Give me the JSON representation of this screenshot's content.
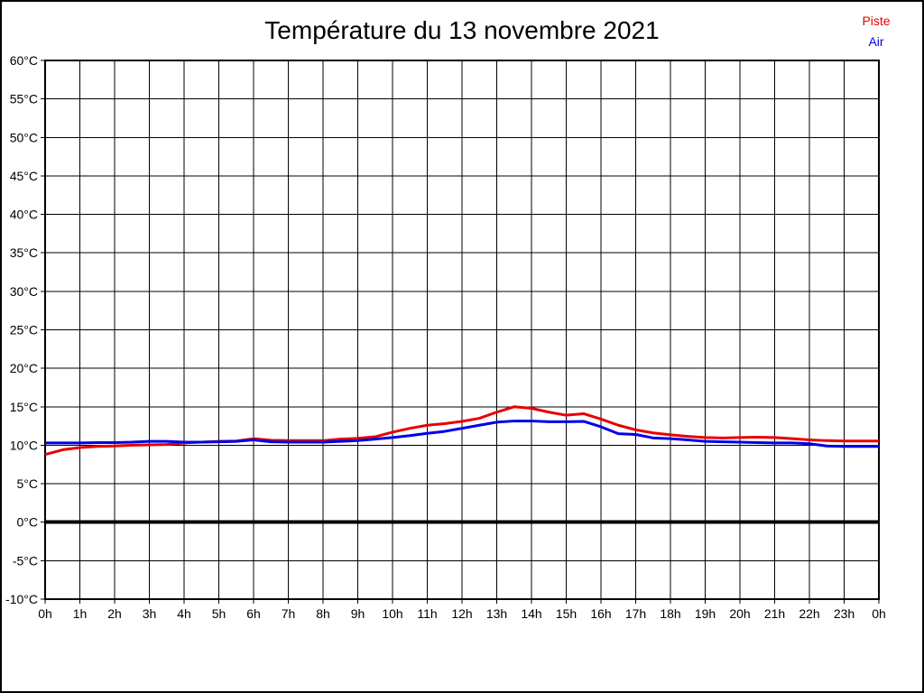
{
  "title": "Température du 13 novembre 2021",
  "legend": {
    "position": "top-right",
    "items": [
      {
        "label": "Piste",
        "color": "#e80000"
      },
      {
        "label": "Air",
        "color": "#0000e8"
      }
    ]
  },
  "axis_color": "#000000",
  "background_color": "#ffffff",
  "chart_data": {
    "type": "line",
    "title": "Température du 13 novembre 2021",
    "xlabel": "",
    "ylabel": "",
    "xlim": [
      0,
      24
    ],
    "ylim": [
      -10,
      60
    ],
    "y_tick_step": 5,
    "grid": true,
    "zero_line": true,
    "legend_position": "top-right",
    "x_tick_labels": [
      "0h",
      "1h",
      "2h",
      "3h",
      "4h",
      "5h",
      "6h",
      "7h",
      "8h",
      "9h",
      "10h",
      "11h",
      "12h",
      "13h",
      "14h",
      "15h",
      "16h",
      "17h",
      "18h",
      "19h",
      "20h",
      "21h",
      "22h",
      "23h",
      "0h"
    ],
    "y_tick_labels": [
      "60°C",
      "55°C",
      "50°C",
      "45°C",
      "40°C",
      "35°C",
      "30°C",
      "25°C",
      "20°C",
      "15°C",
      "10°C",
      "5°C",
      "0°C",
      "-5°C",
      "-10°C"
    ],
    "x": [
      0,
      0.5,
      1,
      1.5,
      2,
      2.5,
      3,
      3.5,
      4,
      4.5,
      5,
      5.5,
      6,
      6.5,
      7,
      7.5,
      8,
      8.5,
      9,
      9.5,
      10,
      10.5,
      11,
      11.5,
      12,
      12.5,
      13,
      13.5,
      14,
      14.5,
      15,
      15.5,
      16,
      16.5,
      17,
      17.5,
      18,
      18.5,
      19,
      19.5,
      20,
      20.5,
      21,
      21.5,
      22,
      22.5,
      23,
      23.5,
      24
    ],
    "series": [
      {
        "name": "Piste",
        "color": "#e80000",
        "values": [
          8.8,
          9.4,
          9.7,
          9.85,
          9.9,
          10.0,
          10.05,
          10.1,
          10.3,
          10.4,
          10.5,
          10.55,
          10.85,
          10.65,
          10.6,
          10.6,
          10.6,
          10.8,
          10.9,
          11.1,
          11.7,
          12.2,
          12.6,
          12.8,
          13.1,
          13.5,
          14.3,
          15.0,
          14.8,
          14.3,
          13.9,
          14.1,
          13.4,
          12.6,
          12.0,
          11.6,
          11.35,
          11.15,
          11.0,
          10.95,
          11.0,
          11.05,
          11.0,
          10.85,
          10.7,
          10.6,
          10.55,
          10.55,
          10.55
        ]
      },
      {
        "name": "Air",
        "color": "#0000e8",
        "values": [
          10.3,
          10.3,
          10.3,
          10.35,
          10.35,
          10.4,
          10.5,
          10.5,
          10.4,
          10.4,
          10.45,
          10.5,
          10.7,
          10.45,
          10.4,
          10.4,
          10.4,
          10.5,
          10.6,
          10.8,
          11.0,
          11.25,
          11.55,
          11.8,
          12.2,
          12.6,
          13.0,
          13.15,
          13.15,
          13.05,
          13.05,
          13.1,
          12.4,
          11.5,
          11.4,
          10.95,
          10.85,
          10.7,
          10.5,
          10.45,
          10.4,
          10.35,
          10.3,
          10.3,
          10.2,
          9.9,
          9.85,
          9.85,
          9.85
        ]
      }
    ]
  }
}
